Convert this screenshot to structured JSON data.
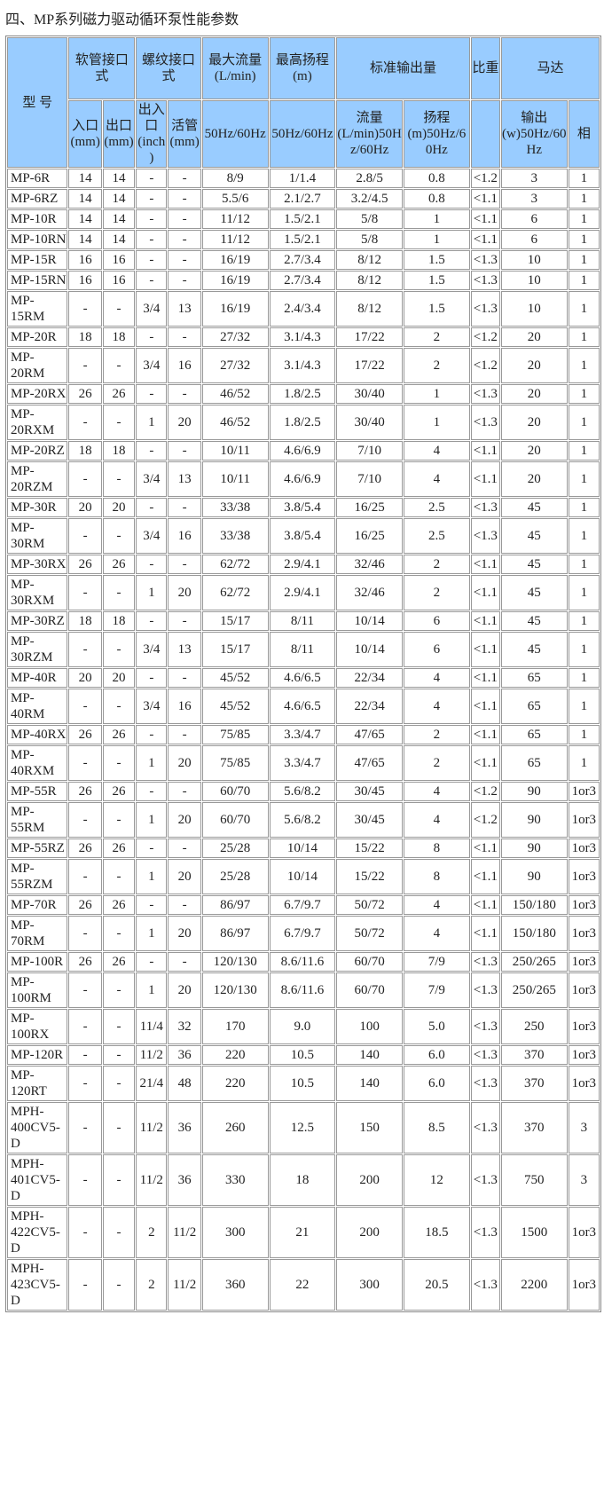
{
  "title": "四、MP系列磁力驱动循环泵性能参数",
  "header": {
    "model": "型 号",
    "hose": "软管接口式",
    "thread": "螺纹接口式",
    "max_flow": "最大流量(L/min)",
    "max_head": "最高扬程(m)",
    "std_output": "标准输出量",
    "gravity": "比重",
    "motor": "马达",
    "inlet": "入口(mm)",
    "outlet": "出口(mm)",
    "inout": "出入口(inch)",
    "union": "活管(mm)",
    "hz1": "50Hz/60Hz",
    "hz2": "50Hz/60Hz",
    "flow": "流量(L/min)50Hz/60Hz",
    "head": "扬程(m)50Hz/60Hz",
    "power": "输出(w)50Hz/60Hz",
    "phase": "相"
  },
  "rows": [
    [
      "MP-6R",
      "14",
      "14",
      "-",
      "-",
      "8/9",
      "1/1.4",
      "2.8/5",
      "0.8",
      "<1.2",
      "3",
      "1"
    ],
    [
      "MP-6RZ",
      "14",
      "14",
      "-",
      "-",
      "5.5/6",
      "2.1/2.7",
      "3.2/4.5",
      "0.8",
      "<1.1",
      "3",
      "1"
    ],
    [
      "MP-10R",
      "14",
      "14",
      "-",
      "-",
      "11/12",
      "1.5/2.1",
      "5/8",
      "1",
      "<1.1",
      "6",
      "1"
    ],
    [
      "MP-10RN",
      "14",
      "14",
      "-",
      "-",
      "11/12",
      "1.5/2.1",
      "5/8",
      "1",
      "<1.1",
      "6",
      "1"
    ],
    [
      "MP-15R",
      "16",
      "16",
      "-",
      "-",
      "16/19",
      "2.7/3.4",
      "8/12",
      "1.5",
      "<1.3",
      "10",
      "1"
    ],
    [
      "MP-15RN",
      "16",
      "16",
      "-",
      "-",
      "16/19",
      "2.7/3.4",
      "8/12",
      "1.5",
      "<1.3",
      "10",
      "1"
    ],
    [
      "MP-15RM",
      "-",
      "-",
      "3/4",
      "13",
      "16/19",
      "2.4/3.4",
      "8/12",
      "1.5",
      "<1.3",
      "10",
      "1"
    ],
    [
      "MP-20R",
      "18",
      "18",
      "-",
      "-",
      "27/32",
      "3.1/4.3",
      "17/22",
      "2",
      "<1.2",
      "20",
      "1"
    ],
    [
      "MP-20RM",
      "-",
      "-",
      "3/4",
      "16",
      "27/32",
      "3.1/4.3",
      "17/22",
      "2",
      "<1.2",
      "20",
      "1"
    ],
    [
      "MP-20RX",
      "26",
      "26",
      "-",
      "-",
      "46/52",
      "1.8/2.5",
      "30/40",
      "1",
      "<1.3",
      "20",
      "1"
    ],
    [
      "MP-20RXM",
      "-",
      "-",
      "1",
      "20",
      "46/52",
      "1.8/2.5",
      "30/40",
      "1",
      "<1.3",
      "20",
      "1"
    ],
    [
      "MP-20RZ",
      "18",
      "18",
      "-",
      "-",
      "10/11",
      "4.6/6.9",
      "7/10",
      "4",
      "<1.1",
      "20",
      "1"
    ],
    [
      "MP-20RZM",
      "-",
      "-",
      "3/4",
      "13",
      "10/11",
      "4.6/6.9",
      "7/10",
      "4",
      "<1.1",
      "20",
      "1"
    ],
    [
      "MP-30R",
      "20",
      "20",
      "-",
      "-",
      "33/38",
      "3.8/5.4",
      "16/25",
      "2.5",
      "<1.3",
      "45",
      "1"
    ],
    [
      "MP-30RM",
      "-",
      "-",
      "3/4",
      "16",
      "33/38",
      "3.8/5.4",
      "16/25",
      "2.5",
      "<1.3",
      "45",
      "1"
    ],
    [
      "MP-30RX",
      "26",
      "26",
      "-",
      "-",
      "62/72",
      "2.9/4.1",
      "32/46",
      "2",
      "<1.1",
      "45",
      "1"
    ],
    [
      "MP-30RXM",
      "-",
      "-",
      "1",
      "20",
      "62/72",
      "2.9/4.1",
      "32/46",
      "2",
      "<1.1",
      "45",
      "1"
    ],
    [
      "MP-30RZ",
      "18",
      "18",
      "-",
      "-",
      "15/17",
      "8/11",
      "10/14",
      "6",
      "<1.1",
      "45",
      "1"
    ],
    [
      "MP-30RZM",
      "-",
      "-",
      "3/4",
      "13",
      "15/17",
      "8/11",
      "10/14",
      "6",
      "<1.1",
      "45",
      "1"
    ],
    [
      "MP-40R",
      "20",
      "20",
      "-",
      "-",
      "45/52",
      "4.6/6.5",
      "22/34",
      "4",
      "<1.1",
      "65",
      "1"
    ],
    [
      "MP-40RM",
      "-",
      "-",
      "3/4",
      "16",
      "45/52",
      "4.6/6.5",
      "22/34",
      "4",
      "<1.1",
      "65",
      "1"
    ],
    [
      "MP-40RX",
      "26",
      "26",
      "-",
      "-",
      "75/85",
      "3.3/4.7",
      "47/65",
      "2",
      "<1.1",
      "65",
      "1"
    ],
    [
      "MP-40RXM",
      "-",
      "-",
      "1",
      "20",
      "75/85",
      "3.3/4.7",
      "47/65",
      "2",
      "<1.1",
      "65",
      "1"
    ],
    [
      "MP-55R",
      "26",
      "26",
      "-",
      "-",
      "60/70",
      "5.6/8.2",
      "30/45",
      "4",
      "<1.2",
      "90",
      "1or3"
    ],
    [
      "MP-55RM",
      "-",
      "-",
      "1",
      "20",
      "60/70",
      "5.6/8.2",
      "30/45",
      "4",
      "<1.2",
      "90",
      "1or3"
    ],
    [
      "MP-55RZ",
      "26",
      "26",
      "-",
      "-",
      "25/28",
      "10/14",
      "15/22",
      "8",
      "<1.1",
      "90",
      "1or3"
    ],
    [
      "MP-55RZM",
      "-",
      "-",
      "1",
      "20",
      "25/28",
      "10/14",
      "15/22",
      "8",
      "<1.1",
      "90",
      "1or3"
    ],
    [
      "MP-70R",
      "26",
      "26",
      "-",
      "-",
      "86/97",
      "6.7/9.7",
      "50/72",
      "4",
      "<1.1",
      "150/180",
      "1or3"
    ],
    [
      "MP-70RM",
      "-",
      "-",
      "1",
      "20",
      "86/97",
      "6.7/9.7",
      "50/72",
      "4",
      "<1.1",
      "150/180",
      "1or3"
    ],
    [
      "MP-100R",
      "26",
      "26",
      "-",
      "-",
      "120/130",
      "8.6/11.6",
      "60/70",
      "7/9",
      "<1.3",
      "250/265",
      "1or3"
    ],
    [
      "MP-100RM",
      "-",
      "-",
      "1",
      "20",
      "120/130",
      "8.6/11.6",
      "60/70",
      "7/9",
      "<1.3",
      "250/265",
      "1or3"
    ],
    [
      "MP-100RX",
      "-",
      "-",
      "11/4",
      "32",
      "170",
      "9.0",
      "100",
      "5.0",
      "<1.3",
      "250",
      "1or3"
    ],
    [
      "MP-120R",
      "-",
      "-",
      "11/2",
      "36",
      "220",
      "10.5",
      "140",
      "6.0",
      "<1.3",
      "370",
      "1or3"
    ],
    [
      "MP-120RT",
      "-",
      "-",
      "21/4",
      "48",
      "220",
      "10.5",
      "140",
      "6.0",
      "<1.3",
      "370",
      "1or3"
    ],
    [
      "MPH-400CV5-D",
      "-",
      "-",
      "11/2",
      "36",
      "260",
      "12.5",
      "150",
      "8.5",
      "<1.3",
      "370",
      "3"
    ],
    [
      "MPH-401CV5-D",
      "-",
      "-",
      "11/2",
      "36",
      "330",
      "18",
      "200",
      "12",
      "<1.3",
      "750",
      "3"
    ],
    [
      "MPH-422CV5-D",
      "-",
      "-",
      "2",
      "11/2",
      "300",
      "21",
      "200",
      "18.5",
      "<1.3",
      "1500",
      "1or3"
    ],
    [
      "MPH-423CV5-D",
      "-",
      "-",
      "2",
      "11/2",
      "360",
      "22",
      "300",
      "20.5",
      "<1.3",
      "2200",
      "1or3"
    ]
  ]
}
